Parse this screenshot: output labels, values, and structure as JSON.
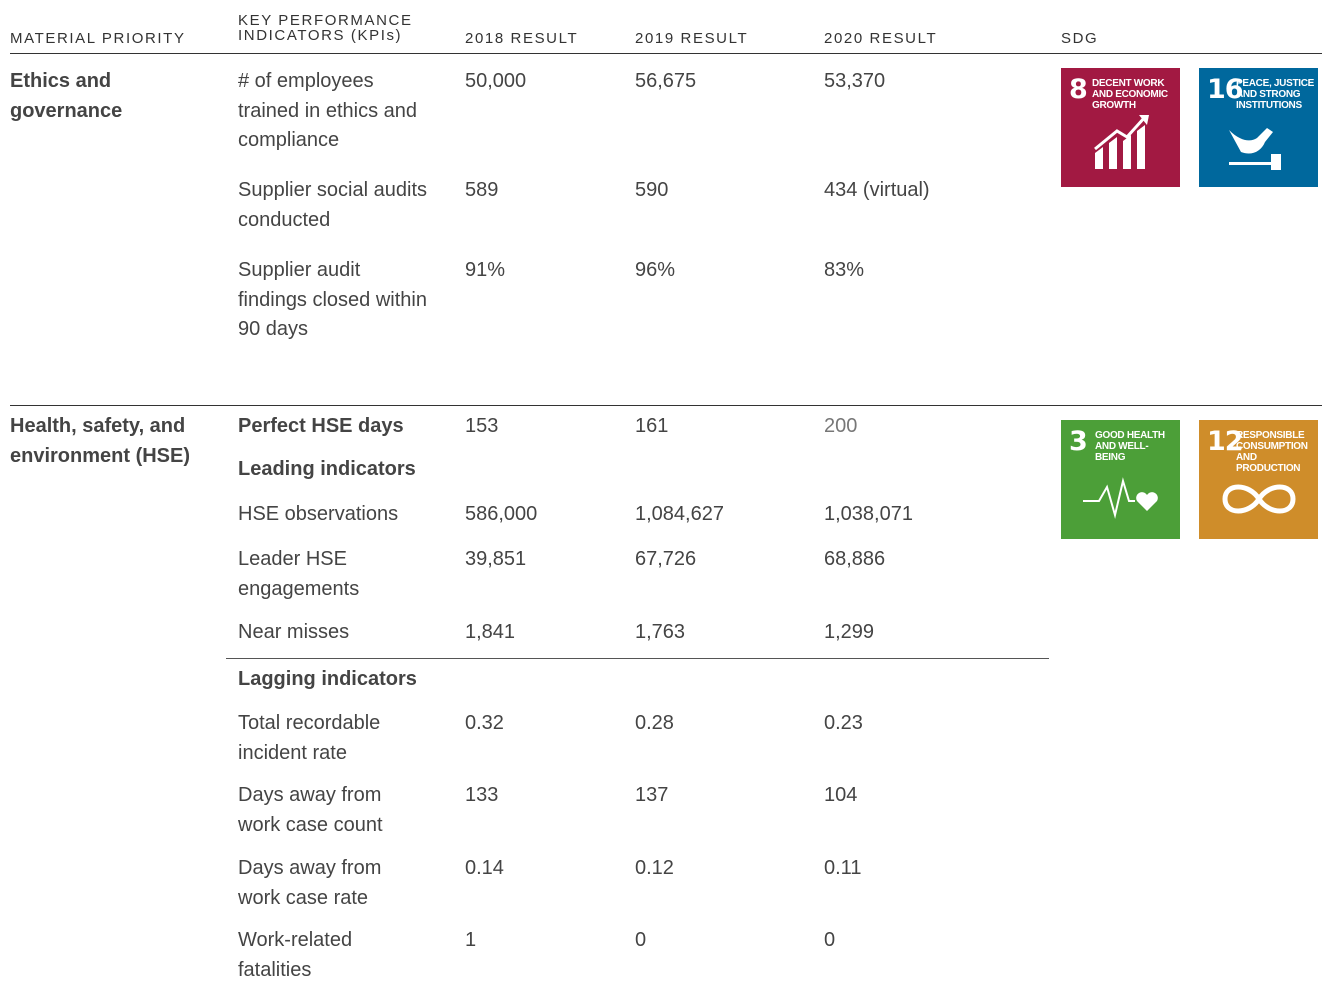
{
  "header": {
    "columns": [
      "MATERIAL PRIORITY",
      "KEY PERFORMANCE INDICATORS (KPIs)",
      "2018 RESULT",
      "2019 RESULT",
      "2020 RESULT",
      "SDG"
    ]
  },
  "sections": [
    {
      "priority": "Ethics and governance",
      "rows": [
        {
          "kpi": "# of employees trained in ethics and compliance",
          "values": [
            "50,000",
            "56,675",
            "53,370"
          ]
        },
        {
          "kpi": "Supplier social audits conducted",
          "values": [
            "589",
            "590",
            "434 (virtual)"
          ]
        },
        {
          "kpi": "Supplier audit findings closed within 90 days",
          "values": [
            "91%",
            "96%",
            "83%"
          ]
        }
      ],
      "sdgs": [
        {
          "number": "8",
          "label": "DECENT WORK AND ECONOMIC GROWTH"
        },
        {
          "number": "16",
          "label": "PEACE, JUSTICE AND STRONG INSTITUTIONS"
        }
      ]
    },
    {
      "priority": "Health, safety, and environment (HSE)",
      "rows": [
        {
          "kpi": "Perfect HSE days",
          "values": [
            "153",
            "161",
            "200"
          ]
        },
        {
          "heading": "Leading indicators"
        },
        {
          "kpi": "HSE observations",
          "values": [
            "586,000",
            "1,084,627",
            "1,038,071"
          ]
        },
        {
          "kpi": "Leader HSE engagements",
          "values": [
            "39,851",
            "67,726",
            "68,886"
          ]
        },
        {
          "kpi": "Near misses",
          "values": [
            "1,841",
            "1,763",
            "1,299"
          ]
        },
        {
          "heading": "Lagging indicators"
        },
        {
          "kpi": "Total recordable incident rate",
          "values": [
            "0.32",
            "0.28",
            "0.23"
          ]
        },
        {
          "kpi": "Days away from work case count",
          "values": [
            "133",
            "137",
            "104"
          ]
        },
        {
          "kpi": "Days away from work case rate",
          "values": [
            "0.14",
            "0.12",
            "0.11"
          ]
        },
        {
          "kpi": "Work-related fatalities",
          "values": [
            "1",
            "0",
            "0"
          ]
        }
      ],
      "sdgs": [
        {
          "number": "3",
          "label": "GOOD HEALTH AND WELL-BEING"
        },
        {
          "number": "12",
          "label": "RESPONSIBLE CONSUMPTION AND PRODUCTION"
        }
      ]
    }
  ]
}
